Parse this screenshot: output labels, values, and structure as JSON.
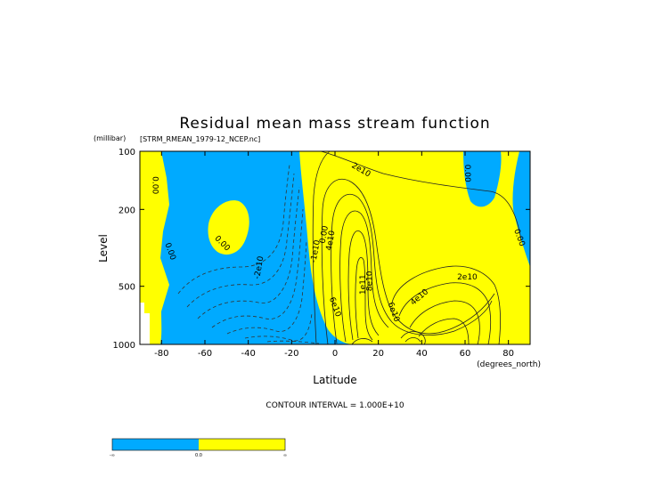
{
  "chart_data": {
    "type": "contour",
    "title": "Residual mean mass stream function",
    "subtitle": "[STRM_RMEAN_1979-12_NCEP.nc]",
    "y_units": "(millibar)",
    "x_units": "(degrees_north)",
    "xlabel": "Latitude",
    "ylabel": "Level",
    "x_ticks": [
      -80,
      -60,
      -40,
      -20,
      0,
      20,
      40,
      60,
      80
    ],
    "y_ticks": [
      100,
      200,
      500,
      1000
    ],
    "xlim": [
      -90,
      90
    ],
    "ylim": [
      1000,
      100
    ],
    "y_scale": "log",
    "grid": false,
    "contour_interval_label": "CONTOUR INTERVAL = 1.000E+10",
    "contour_interval": 10000000000.0,
    "positive_color": "#ffff00",
    "negative_color": "#00aaff",
    "contour_labels": [
      {
        "text": "0.00",
        "lat": -83,
        "p": 150,
        "rot": 90
      },
      {
        "text": "0.00",
        "lat": -76,
        "p": 330,
        "rot": 70
      },
      {
        "text": "0.00",
        "lat": -52,
        "p": 300,
        "rot": 45
      },
      {
        "text": "-2e10",
        "lat": -35,
        "p": 400,
        "rot": -80
      },
      {
        "text": "0.00",
        "lat": -5,
        "p": 270,
        "rot": -80
      },
      {
        "text": "-1e10",
        "lat": -9,
        "p": 330,
        "rot": -80
      },
      {
        "text": "4e10",
        "lat": -2,
        "p": 290,
        "rot": -80
      },
      {
        "text": "2e10",
        "lat": 12,
        "p": 125,
        "rot": 30
      },
      {
        "text": "1e11",
        "lat": 13,
        "p": 490,
        "rot": -90
      },
      {
        "text": "8e10",
        "lat": 16,
        "p": 470,
        "rot": -90
      },
      {
        "text": "6e10",
        "lat": 0,
        "p": 640,
        "rot": 70
      },
      {
        "text": "6e10",
        "lat": 27,
        "p": 680,
        "rot": 70
      },
      {
        "text": "4e10",
        "lat": 39,
        "p": 570,
        "rot": -40
      },
      {
        "text": "2e10",
        "lat": 61,
        "p": 450,
        "rot": 0
      },
      {
        "text": "0.00",
        "lat": 61,
        "p": 130,
        "rot": 90
      },
      {
        "text": "0.00",
        "lat": 85,
        "p": 280,
        "rot": 70
      }
    ],
    "colorbar": {
      "segments": [
        {
          "color": "#00aaff"
        },
        {
          "color": "#ffff00"
        }
      ],
      "labels": [
        "-∞",
        "0.0",
        "∞"
      ]
    }
  }
}
